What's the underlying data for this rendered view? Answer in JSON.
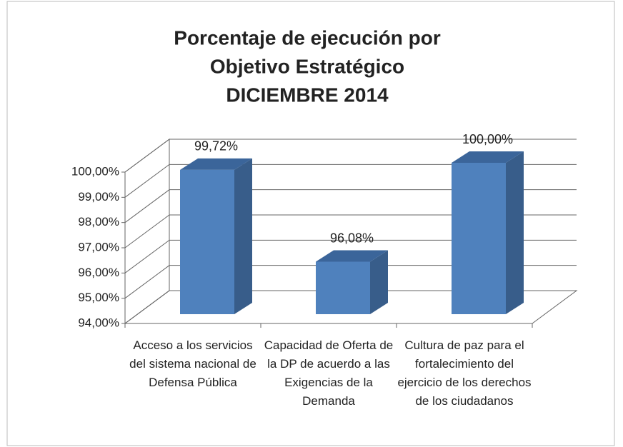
{
  "chart_data": {
    "type": "bar3d",
    "title": [
      "Porcentaje de ejecución por",
      "Objetivo Estratégico",
      "DICIEMBRE  2014"
    ],
    "categories": [
      "Acceso a los servicios del sistema nacional de Defensa Pública",
      "Capacidad de Oferta de la DP de acuerdo a las Exigencias de la Demanda",
      "Cultura de paz para el fortalecimiento del ejercicio de los derechos de los ciudadanos"
    ],
    "values": [
      99.72,
      96.08,
      100
    ],
    "value_labels": [
      "99,72%",
      "96,08%",
      "100,00%"
    ],
    "color": "#4f81bd",
    "ylim": [
      94,
      100
    ],
    "yticks": [
      {
        "value": 94,
        "label": "94,00%"
      },
      {
        "value": 95,
        "label": "95,00%"
      },
      {
        "value": 96,
        "label": "96,00%"
      },
      {
        "value": 97,
        "label": "97,00%"
      },
      {
        "value": 98,
        "label": "98,00%"
      },
      {
        "value": 99,
        "label": "99,00%"
      },
      {
        "value": 100,
        "label": "100,00%"
      }
    ],
    "grid": true
  }
}
